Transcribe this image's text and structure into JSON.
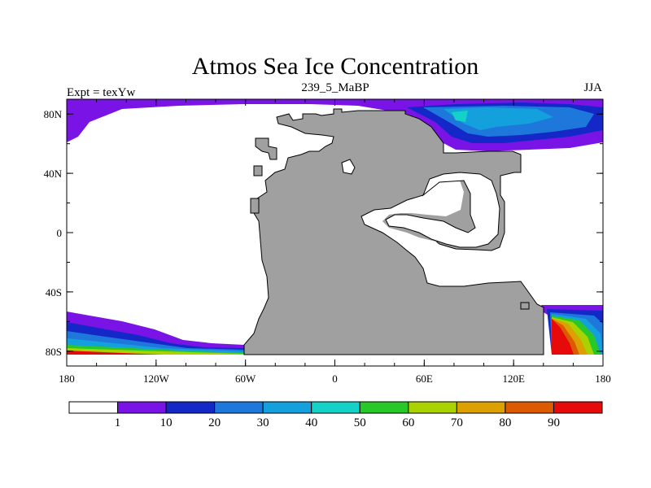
{
  "title": "Atmos Sea Ice Concentration",
  "left_label": "Expt = texYw",
  "center_label": "239_5_MaBP",
  "right_label": "JJA",
  "map": {
    "lon_ticks": [
      "180",
      "120W",
      "60W",
      "0",
      "60E",
      "120E",
      "180"
    ],
    "lat_ticks": [
      "80N",
      "40N",
      "0",
      "40S",
      "80S"
    ],
    "land_color": "#a0a0a0",
    "ocean_color": "#ffffff"
  },
  "colorbar": {
    "labels": [
      "1",
      "10",
      "20",
      "30",
      "40",
      "50",
      "60",
      "70",
      "80",
      "90"
    ],
    "colors": [
      "#ffffff",
      "#7a14e6",
      "#1428c8",
      "#1e78dc",
      "#14a0dc",
      "#14d2c8",
      "#28c828",
      "#aad200",
      "#dca000",
      "#dc5a00",
      "#e60a0a"
    ]
  },
  "chart_data": {
    "type": "heatmap",
    "variable": "sea ice concentration",
    "levels": [
      1,
      10,
      20,
      30,
      40,
      50,
      60,
      70,
      80,
      90
    ],
    "xlim": [
      -180,
      180
    ],
    "ylim": [
      -90,
      90
    ]
  }
}
